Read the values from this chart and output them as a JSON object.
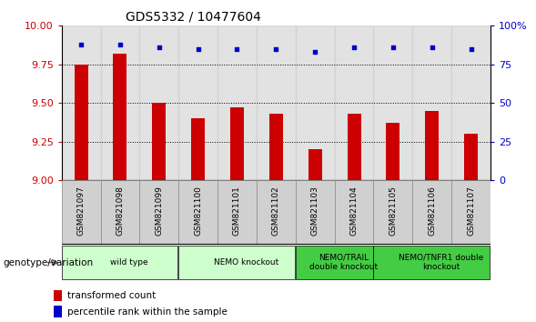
{
  "title": "GDS5332 / 10477604",
  "samples": [
    "GSM821097",
    "GSM821098",
    "GSM821099",
    "GSM821100",
    "GSM821101",
    "GSM821102",
    "GSM821103",
    "GSM821104",
    "GSM821105",
    "GSM821106",
    "GSM821107"
  ],
  "bar_values": [
    9.75,
    9.82,
    9.5,
    9.4,
    9.47,
    9.43,
    9.2,
    9.43,
    9.37,
    9.45,
    9.3
  ],
  "dot_values": [
    88,
    88,
    86,
    85,
    85,
    85,
    83,
    86,
    86,
    86,
    85
  ],
  "ylim_left": [
    9.0,
    10.0
  ],
  "ylim_right": [
    0,
    100
  ],
  "yticks_left": [
    9.0,
    9.25,
    9.5,
    9.75,
    10.0
  ],
  "yticks_right": [
    0,
    25,
    50,
    75,
    100
  ],
  "bar_color": "#cc0000",
  "dot_color": "#0000cc",
  "legend_bar_label": "transformed count",
  "legend_dot_label": "percentile rank within the sample",
  "xlabel_text": "genotype/variation",
  "col_bg_color": "#d0d0d0",
  "groups_def": [
    {
      "start": 0,
      "end": 3,
      "label": "wild type",
      "color": "#ccffcc"
    },
    {
      "start": 3,
      "end": 6,
      "label": "NEMO knockout",
      "color": "#ccffcc"
    },
    {
      "start": 6,
      "end": 8,
      "label": "NEMO/TRAIL\ndouble knockout",
      "color": "#44cc44"
    },
    {
      "start": 8,
      "end": 11,
      "label": "NEMO/TNFR1 double\nknockout",
      "color": "#44cc44"
    }
  ]
}
